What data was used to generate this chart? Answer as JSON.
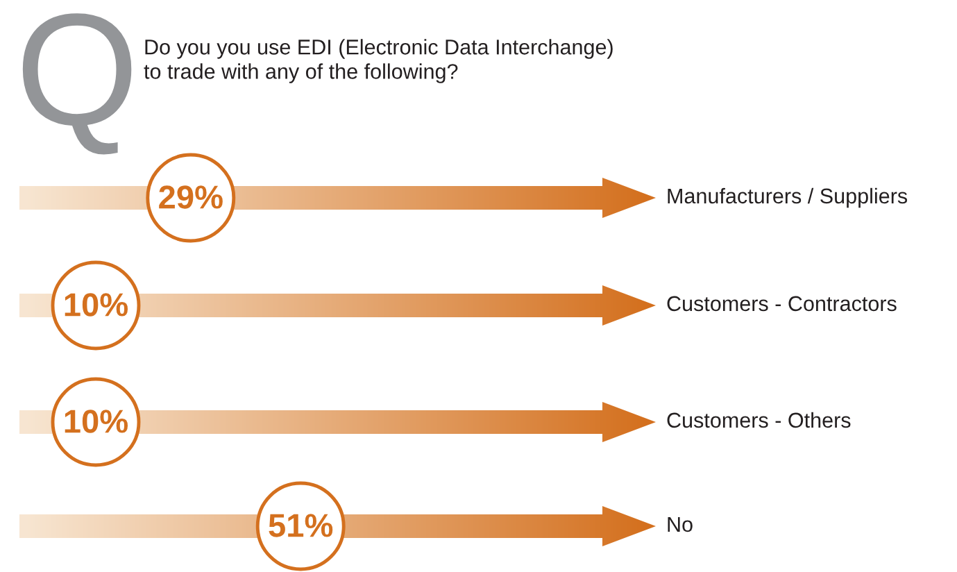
{
  "chart_data": {
    "type": "other",
    "title": "Do you you use EDI (Electronic Data Interchange)\nto trade with any of the following?",
    "annotations": [
      "Q"
    ],
    "categories": [
      "Manufacturers / Suppliers",
      "Customers - Contractors",
      "Customers - Others",
      "No"
    ],
    "values": [
      29,
      10,
      10,
      51
    ],
    "value_labels": [
      "29%",
      "10%",
      "10%",
      "51%"
    ],
    "color": "#d4701e"
  }
}
